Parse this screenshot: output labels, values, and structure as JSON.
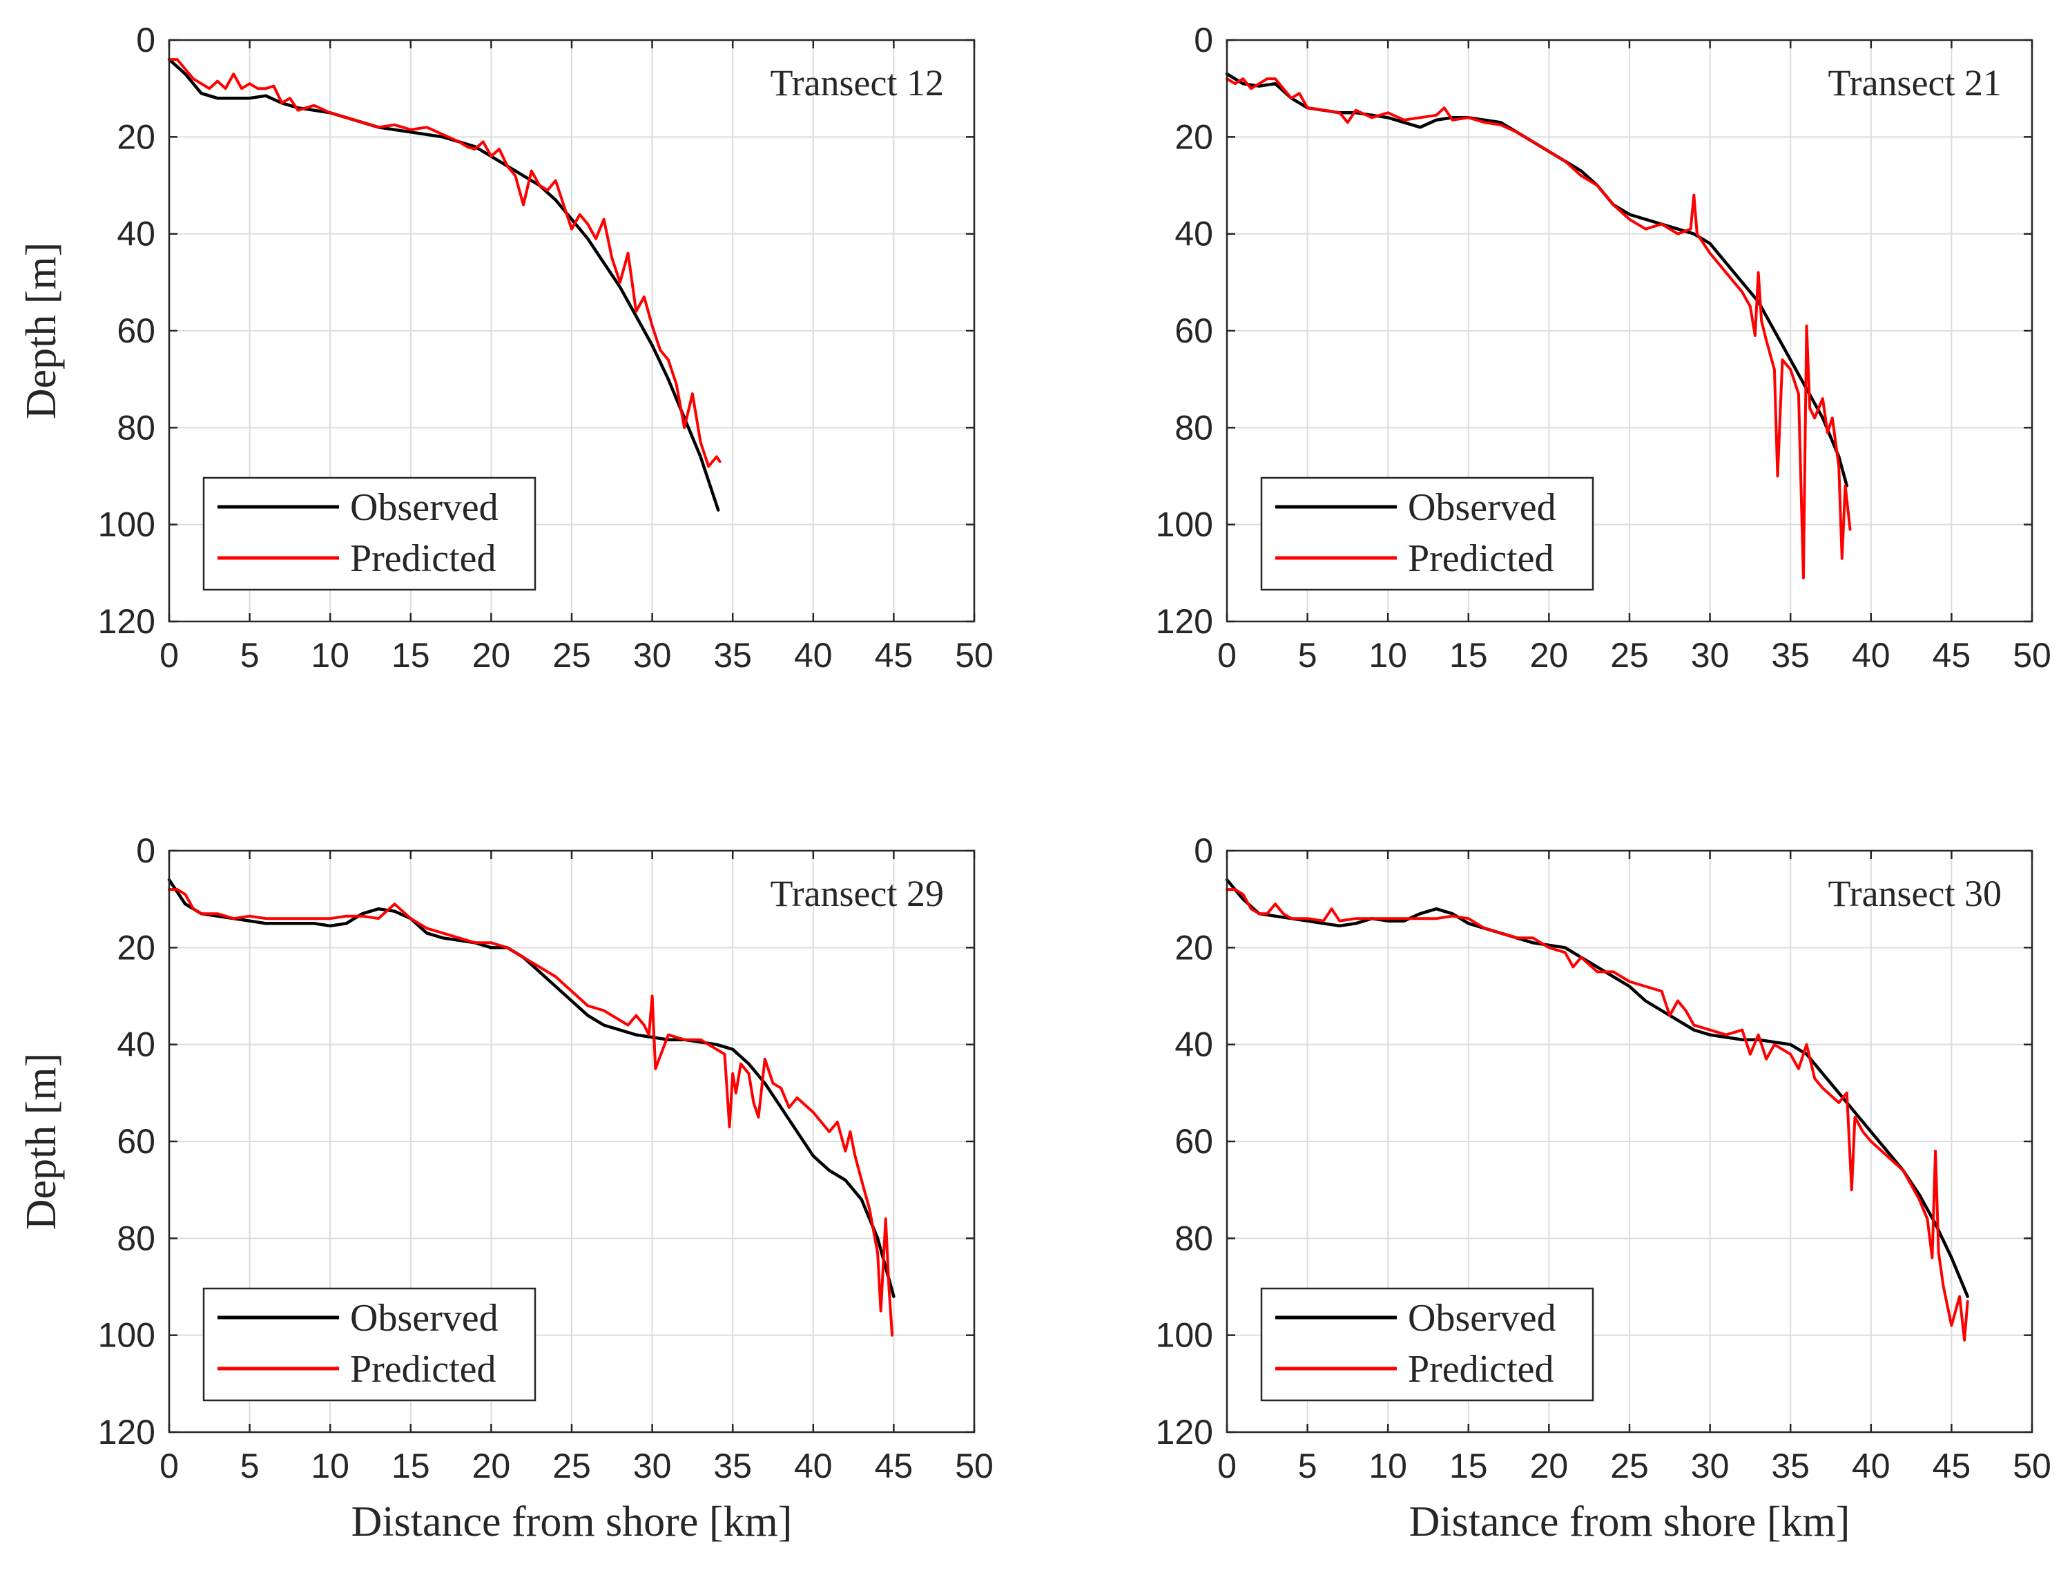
{
  "figure": {
    "xlabel": "Distance from shore [km]",
    "ylabel": "Depth [m]"
  },
  "colors": {
    "observed": "#000000",
    "predicted": "#ff0000"
  },
  "chart_data": [
    {
      "type": "line",
      "title": "Transect 12",
      "xlabel": "Distance from shore [km]",
      "ylabel": "Depth [m]",
      "xlim": [
        0,
        50
      ],
      "ylim": [
        0,
        120
      ],
      "y_reversed": true,
      "xticks": [
        0,
        5,
        10,
        15,
        20,
        25,
        30,
        35,
        40,
        45,
        50
      ],
      "yticks": [
        0,
        20,
        40,
        60,
        80,
        100,
        120
      ],
      "grid": true,
      "legend_position": "bottom-left",
      "series": [
        {
          "name": "Observed",
          "color": "#000000",
          "x": [
            0,
            1,
            2,
            3,
            4,
            5,
            6,
            7,
            8,
            9,
            10,
            11,
            12,
            13,
            14,
            15,
            16,
            17,
            18,
            19,
            20,
            21,
            22,
            23,
            24,
            25,
            26,
            27,
            28,
            29,
            30,
            31,
            32,
            33,
            34.1
          ],
          "y": [
            4,
            7,
            11,
            12,
            12,
            12,
            11.5,
            13,
            14,
            14.5,
            15,
            16,
            17,
            18,
            18.5,
            19,
            19.5,
            20,
            21,
            22,
            24,
            26,
            28,
            30,
            33,
            37,
            41,
            46,
            51,
            57,
            63,
            70,
            78,
            86,
            97
          ]
        },
        {
          "name": "Predicted",
          "color": "#ff0000",
          "x": [
            0,
            0.5,
            1,
            1.5,
            2,
            2.5,
            3,
            3.5,
            4,
            4.5,
            5,
            5.5,
            6,
            6.5,
            7,
            7.5,
            8,
            9,
            10,
            11,
            12,
            13,
            14,
            15,
            16,
            17,
            18,
            18.5,
            19,
            19.5,
            20,
            20.5,
            21,
            21.5,
            22,
            22.5,
            23,
            23.5,
            24,
            24.5,
            25,
            25.5,
            26,
            26.5,
            27,
            27.5,
            28,
            28.5,
            29,
            29.5,
            30,
            30.5,
            31,
            31.5,
            32,
            32.5,
            33,
            33.5,
            34,
            34.2
          ],
          "y": [
            4,
            4,
            6,
            8,
            9,
            10,
            8.5,
            10,
            7,
            10,
            9,
            10,
            10,
            9.5,
            13,
            12,
            14.5,
            13.5,
            15,
            16,
            17,
            18,
            17.5,
            18.5,
            18,
            19.5,
            21,
            22,
            22.5,
            21,
            24,
            22.5,
            26,
            28,
            34,
            27,
            30,
            31,
            29,
            34,
            39,
            36,
            38,
            41,
            37,
            45,
            50,
            44,
            56,
            53,
            59,
            64,
            66,
            71,
            80,
            73,
            83,
            88,
            86,
            87
          ]
        }
      ]
    },
    {
      "type": "line",
      "title": "Transect 21",
      "xlabel": "Distance from shore [km]",
      "ylabel": "Depth [m]",
      "xlim": [
        0,
        50
      ],
      "ylim": [
        0,
        120
      ],
      "y_reversed": true,
      "xticks": [
        0,
        5,
        10,
        15,
        20,
        25,
        30,
        35,
        40,
        45,
        50
      ],
      "yticks": [
        0,
        20,
        40,
        60,
        80,
        100,
        120
      ],
      "grid": true,
      "legend_position": "bottom-left",
      "series": [
        {
          "name": "Observed",
          "color": "#000000",
          "x": [
            0,
            1,
            2,
            3,
            4,
            5,
            6,
            7,
            8,
            9,
            10,
            11,
            12,
            13,
            14,
            15,
            16,
            17,
            18,
            19,
            20,
            21,
            22,
            23,
            24,
            25,
            26,
            27,
            28,
            29,
            30,
            31,
            32,
            33,
            34,
            35,
            36,
            37,
            38,
            38.5
          ],
          "y": [
            7,
            9,
            9.5,
            9,
            12,
            14,
            14.5,
            15,
            15,
            15.5,
            16,
            17,
            18,
            16.5,
            16,
            16,
            16.5,
            17,
            19,
            21,
            23,
            25,
            27,
            30,
            34,
            36,
            37,
            38,
            39,
            40,
            42,
            46,
            50,
            54,
            60,
            66,
            72,
            78,
            86,
            92
          ]
        },
        {
          "name": "Predicted",
          "color": "#ff0000",
          "x": [
            0,
            0.5,
            1,
            1.5,
            2,
            2.5,
            3,
            3.5,
            4,
            4.5,
            5,
            6,
            7,
            7.5,
            8,
            9,
            10,
            11,
            12,
            13,
            13.5,
            14,
            15,
            16,
            17,
            18,
            19,
            20,
            21,
            22,
            23,
            24,
            25,
            26,
            27,
            28,
            28.8,
            29,
            29.2,
            30,
            31,
            32,
            32.5,
            32.8,
            33,
            33.2,
            33.5,
            34,
            34.2,
            34.5,
            35,
            35.5,
            35.8,
            36,
            36.2,
            36.5,
            37,
            37.3,
            37.6,
            38,
            38.2,
            38.4,
            38.6,
            38.7
          ],
          "y": [
            8,
            9,
            8,
            10,
            9,
            8,
            8,
            10,
            12,
            11,
            14,
            14.5,
            15,
            17,
            14.5,
            16,
            15,
            16.5,
            16,
            15.5,
            14,
            16.5,
            16,
            17,
            17.5,
            19,
            21,
            23,
            25,
            28,
            30,
            34,
            37,
            39,
            38,
            40,
            39,
            32,
            40,
            44,
            48,
            52,
            55,
            61,
            48,
            58,
            62,
            68,
            90,
            66,
            68,
            73,
            111,
            59,
            76,
            78,
            74,
            81,
            78,
            88,
            107,
            92,
            98,
            101
          ]
        }
      ]
    },
    {
      "type": "line",
      "title": "Transect 29",
      "xlabel": "Distance from shore [km]",
      "ylabel": "Depth [m]",
      "xlim": [
        0,
        50
      ],
      "ylim": [
        0,
        120
      ],
      "y_reversed": true,
      "xticks": [
        0,
        5,
        10,
        15,
        20,
        25,
        30,
        35,
        40,
        45,
        50
      ],
      "yticks": [
        0,
        20,
        40,
        60,
        80,
        100,
        120
      ],
      "grid": true,
      "legend_position": "bottom-left",
      "series": [
        {
          "name": "Observed",
          "color": "#000000",
          "x": [
            0,
            1,
            2,
            3,
            4,
            5,
            6,
            7,
            8,
            9,
            10,
            11,
            12,
            13,
            14,
            15,
            16,
            17,
            18,
            19,
            20,
            21,
            22,
            23,
            24,
            25,
            26,
            27,
            28,
            29,
            30,
            31,
            32,
            33,
            34,
            35,
            36,
            37,
            38,
            39,
            40,
            41,
            42,
            43,
            44,
            45
          ],
          "y": [
            6,
            11,
            13,
            13.5,
            14,
            14.5,
            15,
            15,
            15,
            15,
            15.5,
            15,
            13,
            12,
            12.5,
            14,
            17,
            18,
            18.5,
            19,
            20,
            20,
            22,
            25,
            28,
            31,
            34,
            36,
            37,
            38,
            38.5,
            39,
            39,
            39.5,
            40,
            41,
            44,
            48,
            53,
            58,
            63,
            66,
            68,
            72,
            80,
            92
          ]
        },
        {
          "name": "Predicted",
          "color": "#ff0000",
          "x": [
            0,
            0.5,
            1,
            1.5,
            2,
            3,
            4,
            5,
            6,
            7,
            8,
            9,
            10,
            11,
            12,
            13,
            13.5,
            14,
            15,
            16,
            17,
            18,
            19,
            20,
            21,
            22,
            23,
            24,
            25,
            26,
            27,
            28,
            28.5,
            29,
            29.5,
            29.8,
            30,
            30.2,
            31,
            32,
            33,
            34,
            34.5,
            34.8,
            35,
            35.2,
            35.5,
            36,
            36.3,
            36.6,
            37,
            37.5,
            38,
            38.5,
            39,
            40,
            41,
            41.5,
            42,
            42.3,
            42.6,
            43,
            43.5,
            44,
            44.2,
            44.5,
            44.7,
            44.9
          ],
          "y": [
            8,
            8,
            9,
            12,
            13,
            13,
            14,
            13.5,
            14,
            14,
            14,
            14,
            14,
            13.5,
            13.5,
            14,
            12.5,
            11,
            14,
            16,
            17,
            18,
            19,
            19,
            20,
            22,
            24,
            26,
            29,
            32,
            33,
            35,
            36,
            34,
            36,
            38,
            30,
            45,
            38,
            39,
            39,
            41,
            42,
            57,
            46,
            50,
            44,
            46,
            52,
            55,
            43,
            48,
            49,
            53,
            51,
            54,
            58,
            56,
            62,
            58,
            63,
            68,
            74,
            83,
            95,
            76,
            90,
            100
          ]
        }
      ]
    },
    {
      "type": "line",
      "title": "Transect 30",
      "xlabel": "Distance from shore [km]",
      "ylabel": "Depth [m]",
      "xlim": [
        0,
        50
      ],
      "ylim": [
        0,
        120
      ],
      "y_reversed": true,
      "xticks": [
        0,
        5,
        10,
        15,
        20,
        25,
        30,
        35,
        40,
        45,
        50
      ],
      "yticks": [
        0,
        20,
        40,
        60,
        80,
        100,
        120
      ],
      "grid": true,
      "legend_position": "bottom-left",
      "series": [
        {
          "name": "Observed",
          "color": "#000000",
          "x": [
            0,
            1,
            2,
            3,
            4,
            5,
            6,
            7,
            8,
            9,
            10,
            11,
            12,
            13,
            14,
            15,
            16,
            17,
            18,
            19,
            20,
            21,
            22,
            23,
            24,
            25,
            26,
            27,
            28,
            29,
            30,
            31,
            32,
            33,
            34,
            35,
            36,
            37,
            38,
            39,
            40,
            41,
            42,
            43,
            44,
            45,
            46
          ],
          "y": [
            6,
            10,
            13,
            13.5,
            14,
            14.5,
            15,
            15.5,
            15,
            14,
            14.5,
            14.5,
            13,
            12,
            13,
            15,
            16,
            17,
            18,
            19,
            19.5,
            20,
            22,
            24,
            26,
            28,
            31,
            33,
            35,
            37,
            38,
            38.5,
            39,
            39,
            39.5,
            40,
            42,
            46,
            50,
            54,
            58,
            62,
            66,
            71,
            77,
            84,
            92
          ]
        },
        {
          "name": "Predicted",
          "color": "#ff0000",
          "x": [
            0,
            0.5,
            1,
            1.5,
            2,
            2.5,
            3,
            3.5,
            4,
            5,
            6,
            6.5,
            7,
            8,
            9,
            10,
            11,
            12,
            13,
            14,
            15,
            16,
            17,
            18,
            19,
            20,
            21,
            21.5,
            22,
            23,
            24,
            25,
            26,
            27,
            27.5,
            28,
            28.5,
            29,
            30,
            31,
            32,
            32.5,
            33,
            33.5,
            34,
            35,
            35.5,
            36,
            36.5,
            37,
            38,
            38.5,
            38.8,
            39,
            39.5,
            40,
            41,
            42,
            43,
            43.5,
            43.8,
            44,
            44.2,
            44.5,
            45,
            45.5,
            45.8,
            46
          ],
          "y": [
            8,
            8,
            9,
            12,
            13,
            13,
            11,
            13,
            14,
            14,
            14.5,
            12,
            14.5,
            14,
            14,
            14,
            14,
            14,
            14,
            13.5,
            14,
            16,
            17,
            18,
            18,
            20,
            21,
            24,
            22,
            25,
            25,
            27,
            28,
            29,
            34,
            31,
            33,
            36,
            37,
            38,
            37,
            42,
            38,
            43,
            40,
            42,
            45,
            40,
            47,
            49,
            52,
            50,
            70,
            55,
            58,
            60,
            63,
            66,
            72,
            76,
            84,
            62,
            83,
            90,
            98,
            92,
            101,
            93
          ]
        }
      ]
    }
  ]
}
